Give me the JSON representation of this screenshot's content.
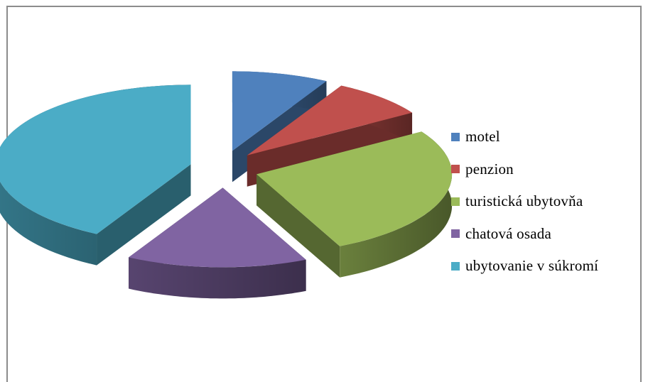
{
  "chart_data": {
    "type": "pie",
    "title": "",
    "style": "3d-exploded",
    "legend_position": "right",
    "categories": [
      "motel",
      "penzion",
      "turistická ubytovňa",
      "chatová osada",
      "ubytovanie v súkromí"
    ],
    "values": [
      8,
      8,
      27,
      15,
      42
    ],
    "colors": [
      "#4f81bd",
      "#c0504d",
      "#9bbb59",
      "#8064a2",
      "#4bacc6"
    ]
  }
}
